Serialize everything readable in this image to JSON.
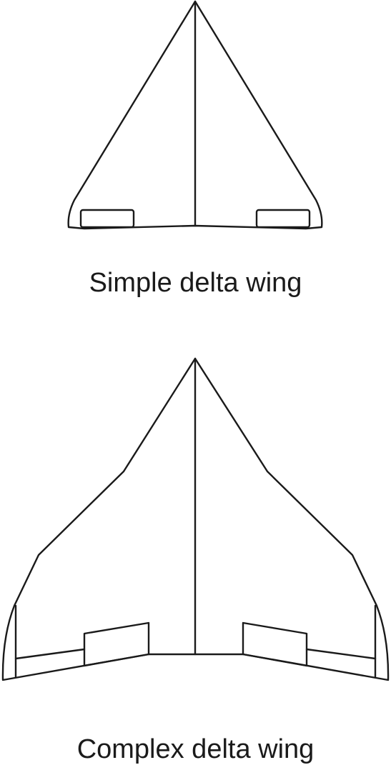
{
  "figures": [
    {
      "caption": "Simple delta wing"
    },
    {
      "caption": "Complex delta wing"
    }
  ]
}
